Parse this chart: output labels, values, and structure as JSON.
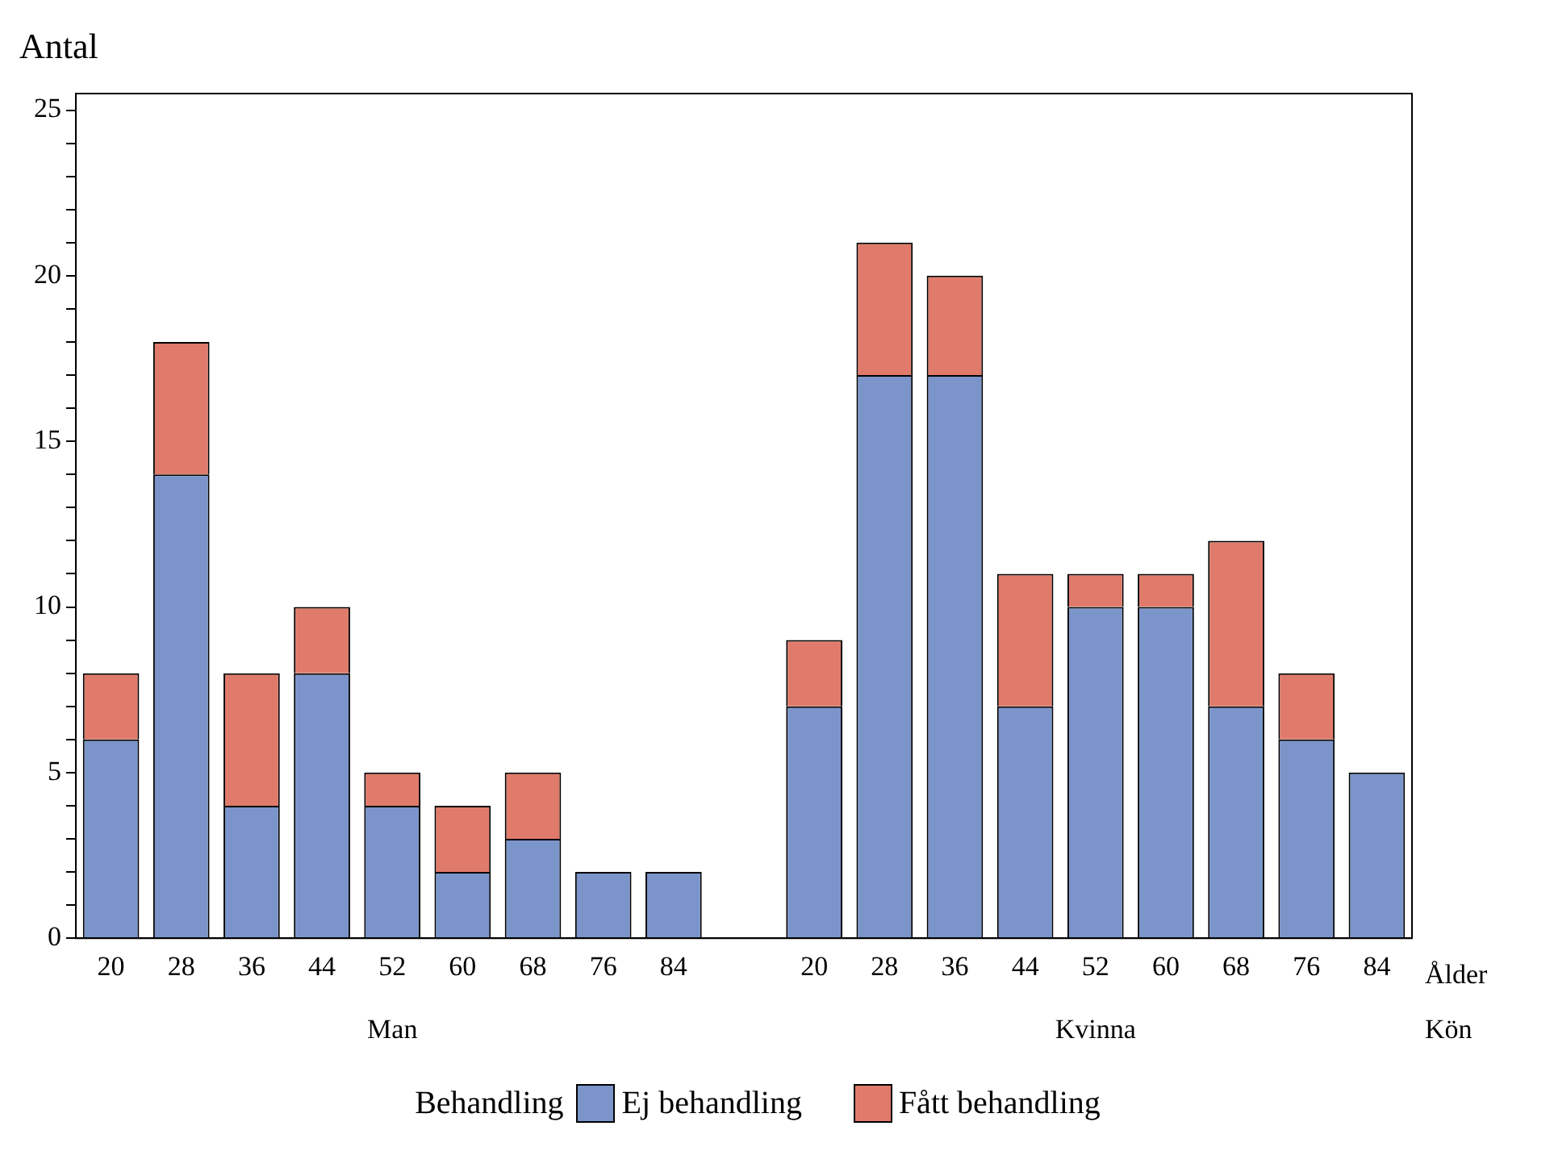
{
  "chart_data": {
    "type": "bar",
    "stacked": true,
    "ylabel": "Antal",
    "xlabel": "Ålder",
    "legend_title": "Behandling",
    "legend": "bottom",
    "grid": false,
    "categories": [
      "20",
      "28",
      "36",
      "44",
      "52",
      "60",
      "68",
      "76",
      "84",
      null,
      "20",
      "28",
      "36",
      "44",
      "52",
      "60",
      "68",
      "76",
      "84"
    ],
    "series": [
      {
        "name": "Ej behandling",
        "color": "#7b95cb",
        "values": [
          6,
          14,
          4,
          8,
          4,
          2,
          3,
          2,
          2,
          null,
          7,
          17,
          17,
          7,
          10,
          10,
          7,
          6,
          5
        ]
      },
      {
        "name": "Fått behandling",
        "color": "#e07b6b",
        "values": [
          2,
          4,
          4,
          2,
          1,
          2,
          2,
          0,
          0,
          null,
          2,
          4,
          3,
          4,
          1,
          1,
          5,
          2,
          0
        ]
      }
    ],
    "ylim": [
      0,
      25.5
    ],
    "yticks": [
      0,
      {
        "value": 1,
        "label": null
      },
      {
        "value": 2,
        "label": null
      },
      {
        "value": 3,
        "label": null
      },
      {
        "value": 4,
        "label": null
      },
      5,
      {
        "value": 6,
        "label": null
      },
      {
        "value": 7,
        "label": null
      },
      {
        "value": 8,
        "label": null
      },
      {
        "value": 9,
        "label": null
      },
      10,
      {
        "value": 11,
        "label": null
      },
      {
        "value": 12,
        "label": null
      },
      {
        "value": 13,
        "label": null
      },
      {
        "value": 14,
        "label": null
      },
      15,
      {
        "value": 16,
        "label": null
      },
      {
        "value": 17,
        "label": null
      },
      {
        "value": 18,
        "label": null
      },
      {
        "value": 19,
        "label": null
      },
      20,
      {
        "value": 21,
        "label": null
      },
      {
        "value": 22,
        "label": null
      },
      {
        "value": 23,
        "label": null
      },
      {
        "value": 24,
        "label": null
      },
      25
    ],
    "annotations": [
      "Man",
      "Kvinna",
      "Kön"
    ]
  }
}
